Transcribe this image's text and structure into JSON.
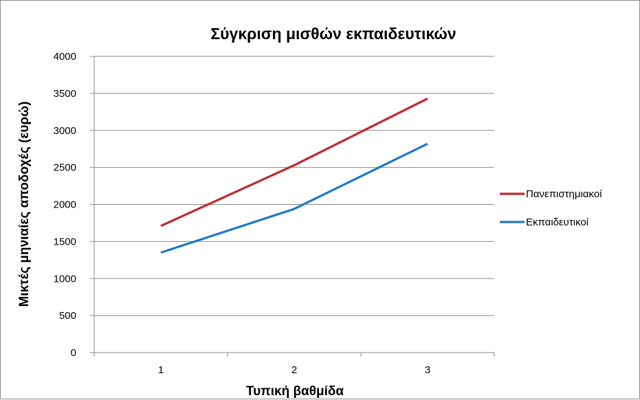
{
  "chart_data": {
    "type": "line",
    "title": "Σύγκριση μισθών εκπαιδευτικών",
    "xlabel": "Τυπική βαθμίδα",
    "ylabel": "Μικτές μηνιαίες αποδοχές (ευρώ)",
    "categories": [
      "1",
      "2",
      "3"
    ],
    "ylim": [
      0,
      4000
    ],
    "yticks": [
      0,
      500,
      1000,
      1500,
      2000,
      2500,
      3000,
      3500,
      4000
    ],
    "grid": true,
    "legend_position": "right",
    "series": [
      {
        "name": "Πανεπιστημιακοί",
        "color": "#c0282b",
        "values": [
          1710,
          2530,
          3430
        ]
      },
      {
        "name": "Εκπαιδευτικοί",
        "color": "#1f77c8",
        "values": [
          1350,
          1940,
          2820
        ]
      }
    ]
  }
}
